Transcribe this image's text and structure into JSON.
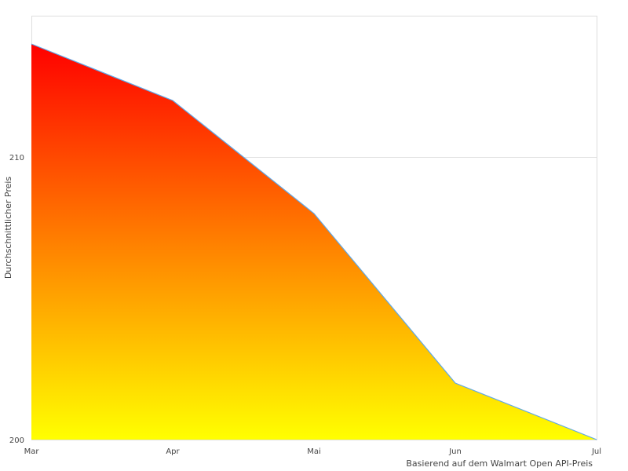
{
  "chart_data": {
    "type": "area",
    "categories": [
      "Mar",
      "Apr",
      "Mai",
      "Jun",
      "Jul"
    ],
    "values": [
      214,
      212,
      208,
      202,
      200
    ],
    "title": "",
    "xlabel": "Basierend auf dem Walmart Open API-Preis",
    "ylabel": "Durchschnittlicher Preis",
    "ylim": [
      200,
      215
    ],
    "yticks": [
      200,
      210
    ],
    "grid": true,
    "legend": "none",
    "fill_gradient": {
      "top": "#ff0000",
      "bottom": "#ffff00"
    },
    "line_color": "#5fa8e8"
  }
}
